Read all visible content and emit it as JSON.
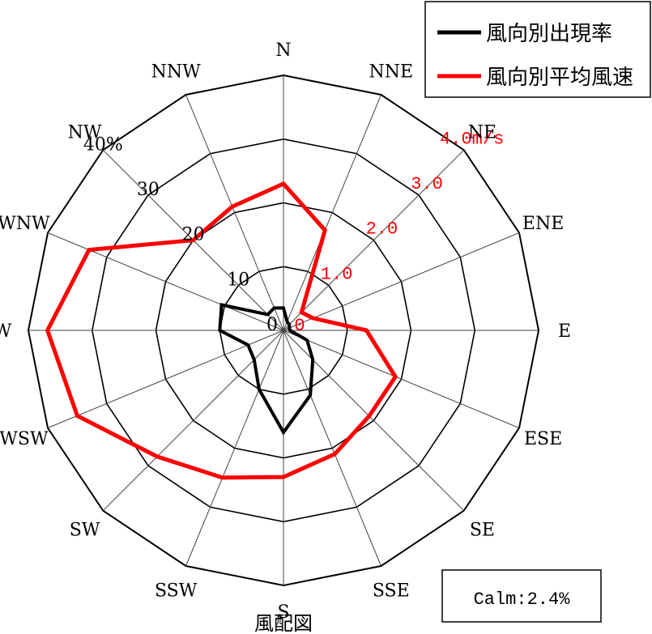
{
  "chart_data": {
    "type": "radar",
    "title": "風配図",
    "directions": [
      "N",
      "NNE",
      "NE",
      "ENE",
      "E",
      "ESE",
      "SE",
      "SSE",
      "S",
      "SSW",
      "SW",
      "WSW",
      "W",
      "WNW",
      "NW",
      "NNW"
    ],
    "frequency_axis": {
      "ticks": [
        "0",
        "10",
        "20",
        "30",
        "40%"
      ],
      "values": [
        0,
        10,
        20,
        30,
        40
      ],
      "max": 40
    },
    "speed_axis": {
      "ticks": [
        "0",
        "1.0",
        "2.0",
        "3.0",
        "4.0m/s"
      ],
      "values": [
        0,
        1,
        2,
        3,
        4
      ],
      "max": 4
    },
    "series": [
      {
        "name": "風向別出現率",
        "axis": "frequency",
        "color": "#000000",
        "values": [
          3.5,
          1.5,
          1.3,
          1.0,
          1.0,
          4.0,
          6.5,
          11.0,
          16.0,
          10.0,
          6.5,
          6.0,
          10.0,
          10.5,
          3.5,
          3.8
        ]
      },
      {
        "name": "風向別平均風速",
        "axis": "speed",
        "color": "#ff0000",
        "values": [
          2.3,
          1.7,
          0.4,
          0.5,
          1.3,
          1.9,
          1.9,
          2.1,
          2.3,
          2.5,
          2.8,
          3.5,
          3.7,
          3.3,
          2.0,
          2.1
        ]
      }
    ],
    "legend": {
      "placement": "top-right",
      "entries": [
        "風向別出現率",
        "風向別平均風速"
      ]
    },
    "annotation": "Calm:2.4%",
    "speed_tick_color": "#ff0000"
  }
}
